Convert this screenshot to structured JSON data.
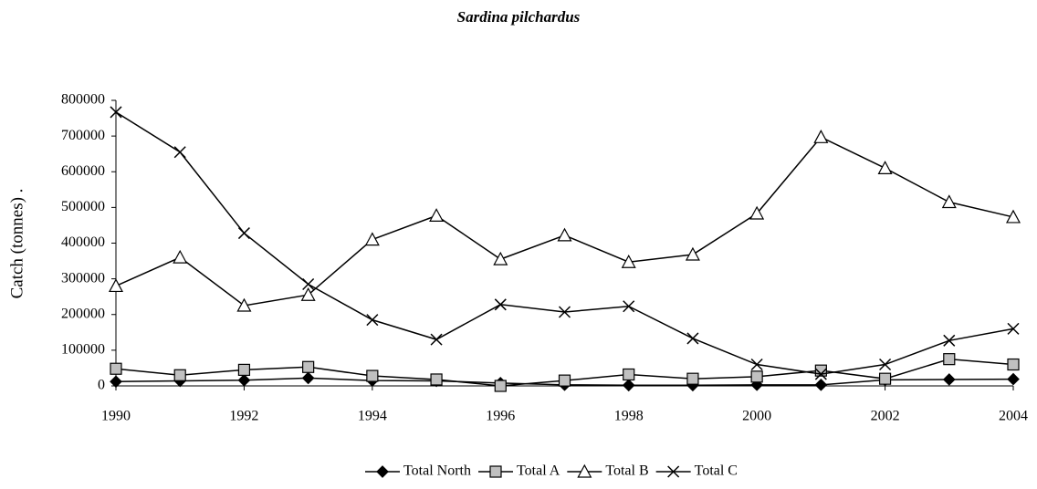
{
  "chart_data": {
    "type": "line",
    "title": "Sardina pilchardus",
    "y_label": "Catch (tonnes) .",
    "x": [
      1990,
      1991,
      1992,
      1993,
      1994,
      1995,
      1996,
      1997,
      1998,
      1999,
      2000,
      2001,
      2002,
      2003,
      2004
    ],
    "xlim": [
      1990,
      2004
    ],
    "xticks": [
      1990,
      1992,
      1994,
      1996,
      1998,
      2000,
      2002,
      2004
    ],
    "ylim": [
      0,
      800000
    ],
    "yticks": [
      0,
      100000,
      200000,
      300000,
      400000,
      500000,
      600000,
      700000,
      800000
    ],
    "grid": false,
    "legend": "bottom",
    "series": [
      {
        "name": "Total North",
        "color": "#000000",
        "marker": "diamond",
        "marker_fill": "#000000",
        "values": [
          12000,
          14000,
          16000,
          22000,
          15000,
          14000,
          8000,
          3000,
          2000,
          2000,
          3000,
          3000,
          17000,
          18000,
          19000
        ]
      },
      {
        "name": "Total A",
        "color": "#000000",
        "marker": "square",
        "marker_fill": "#c0c0c0",
        "values": [
          48000,
          30000,
          45000,
          53000,
          28000,
          18000,
          0,
          15000,
          32000,
          20000,
          26000,
          43000,
          20000,
          75000,
          60000
        ]
      },
      {
        "name": "Total B",
        "color": "#000000",
        "marker": "triangle",
        "marker_fill": "#ffffff",
        "values": [
          280000,
          360000,
          225000,
          255000,
          410000,
          477000,
          355000,
          422000,
          347000,
          368000,
          483000,
          697000,
          610000,
          515000,
          473000
        ]
      },
      {
        "name": "Total C",
        "color": "#000000",
        "marker": "x",
        "marker_fill": "#000000",
        "values": [
          767000,
          655000,
          428000,
          285000,
          185000,
          130000,
          228000,
          207000,
          223000,
          133000,
          60000,
          33000,
          60000,
          127000,
          160000
        ]
      }
    ]
  }
}
